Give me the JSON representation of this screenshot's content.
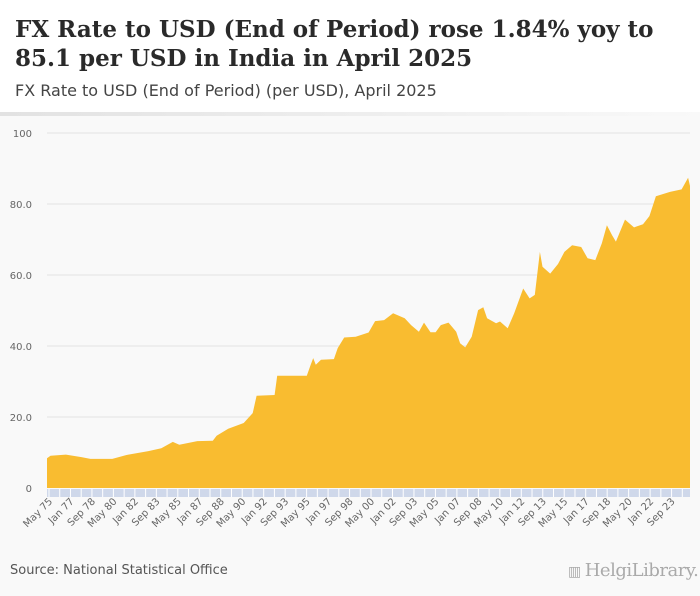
{
  "header": {
    "title": "FX Rate to USD (End of Period) rose 1.84% yoy to 85.1 per USD in India in April 2025",
    "subtitle": "FX Rate to USD (End of Period) (per USD), April 2025"
  },
  "footer": {
    "source": "Source: National Statistical Office",
    "logo_text": "HelgiLibrary."
  },
  "colors": {
    "area": "#f9bc30",
    "grid": "#e4e4e4",
    "axis_band": "#cfd8ea"
  },
  "chart_data": {
    "type": "area",
    "title": "FX Rate to USD (End of Period) (per USD), April 2025",
    "xlabel": "",
    "ylabel": "",
    "ylim": [
      0,
      100
    ],
    "xlim": [
      1975.33,
      2025.25
    ],
    "y_ticks": [
      {
        "value": 0,
        "label": "0"
      },
      {
        "value": 20,
        "label": "20.0"
      },
      {
        "value": 40,
        "label": "40.0"
      },
      {
        "value": 60,
        "label": "60.0"
      },
      {
        "value": 80,
        "label": "80.0"
      },
      {
        "value": 100,
        "label": "100"
      }
    ],
    "x_ticks": [
      "May 75",
      "Jan 77",
      "Sep 78",
      "May 80",
      "Jan 82",
      "Sep 83",
      "May 85",
      "Jan 87",
      "Sep 88",
      "May 90",
      "Jan 92",
      "Sep 93",
      "May 95",
      "Jan 97",
      "Sep 98",
      "May 00",
      "Jan 02",
      "Sep 03",
      "May 05",
      "Jan 07",
      "Sep 08",
      "May 10",
      "Jan 12",
      "Sep 13",
      "May 15",
      "Jan 17",
      "Sep 18",
      "May 20",
      "Jan 22",
      "Sep 23"
    ],
    "x_tick_start": 1975.33,
    "x_tick_step_years": 1.6667,
    "grid": true,
    "legend": "none",
    "series": [
      {
        "name": "FX Rate to USD (End of Period)",
        "points": [
          [
            1975.33,
            8.4
          ],
          [
            1975.6,
            9.1
          ],
          [
            1976.8,
            9.4
          ],
          [
            1978.0,
            8.7
          ],
          [
            1978.7,
            8.2
          ],
          [
            1980.4,
            8.2
          ],
          [
            1981.5,
            9.3
          ],
          [
            1983.2,
            10.4
          ],
          [
            1984.2,
            11.2
          ],
          [
            1985.1,
            13.0
          ],
          [
            1985.6,
            12.2
          ],
          [
            1987.0,
            13.2
          ],
          [
            1988.2,
            13.3
          ],
          [
            1988.5,
            14.7
          ],
          [
            1989.4,
            16.7
          ],
          [
            1990.6,
            18.3
          ],
          [
            1991.3,
            21.1
          ],
          [
            1991.6,
            26.0
          ],
          [
            1993.0,
            26.2
          ],
          [
            1993.2,
            31.6
          ],
          [
            1995.5,
            31.6
          ],
          [
            1995.8,
            34.7
          ],
          [
            1996.0,
            36.6
          ],
          [
            1996.2,
            34.7
          ],
          [
            1996.6,
            36.1
          ],
          [
            1997.6,
            36.3
          ],
          [
            1997.9,
            39.4
          ],
          [
            1998.4,
            42.4
          ],
          [
            1999.3,
            42.6
          ],
          [
            2000.3,
            43.8
          ],
          [
            2000.8,
            47.0
          ],
          [
            2001.5,
            47.3
          ],
          [
            2002.2,
            49.2
          ],
          [
            2003.1,
            47.8
          ],
          [
            2003.6,
            45.9
          ],
          [
            2004.2,
            44.0
          ],
          [
            2004.6,
            46.6
          ],
          [
            2005.1,
            43.9
          ],
          [
            2005.5,
            43.9
          ],
          [
            2005.9,
            45.9
          ],
          [
            2006.5,
            46.6
          ],
          [
            2007.1,
            44.0
          ],
          [
            2007.4,
            40.8
          ],
          [
            2007.8,
            39.6
          ],
          [
            2008.3,
            42.6
          ],
          [
            2008.8,
            50.1
          ],
          [
            2009.2,
            50.9
          ],
          [
            2009.5,
            47.8
          ],
          [
            2010.2,
            46.4
          ],
          [
            2010.5,
            46.9
          ],
          [
            2011.1,
            45.0
          ],
          [
            2011.6,
            49.2
          ],
          [
            2012.3,
            56.2
          ],
          [
            2012.8,
            53.4
          ],
          [
            2013.2,
            54.4
          ],
          [
            2013.6,
            66.5
          ],
          [
            2013.8,
            62.3
          ],
          [
            2014.4,
            60.4
          ],
          [
            2015.0,
            63.1
          ],
          [
            2015.5,
            66.5
          ],
          [
            2016.1,
            68.4
          ],
          [
            2016.8,
            67.9
          ],
          [
            2017.3,
            64.7
          ],
          [
            2017.9,
            64.2
          ],
          [
            2018.4,
            68.9
          ],
          [
            2018.8,
            74.0
          ],
          [
            2019.2,
            71.2
          ],
          [
            2019.5,
            69.4
          ],
          [
            2020.2,
            75.6
          ],
          [
            2020.9,
            73.4
          ],
          [
            2021.6,
            74.3
          ],
          [
            2022.1,
            76.6
          ],
          [
            2022.6,
            82.2
          ],
          [
            2023.7,
            83.4
          ],
          [
            2024.6,
            84.1
          ],
          [
            2025.1,
            87.4
          ],
          [
            2025.25,
            85.1
          ]
        ]
      }
    ]
  }
}
